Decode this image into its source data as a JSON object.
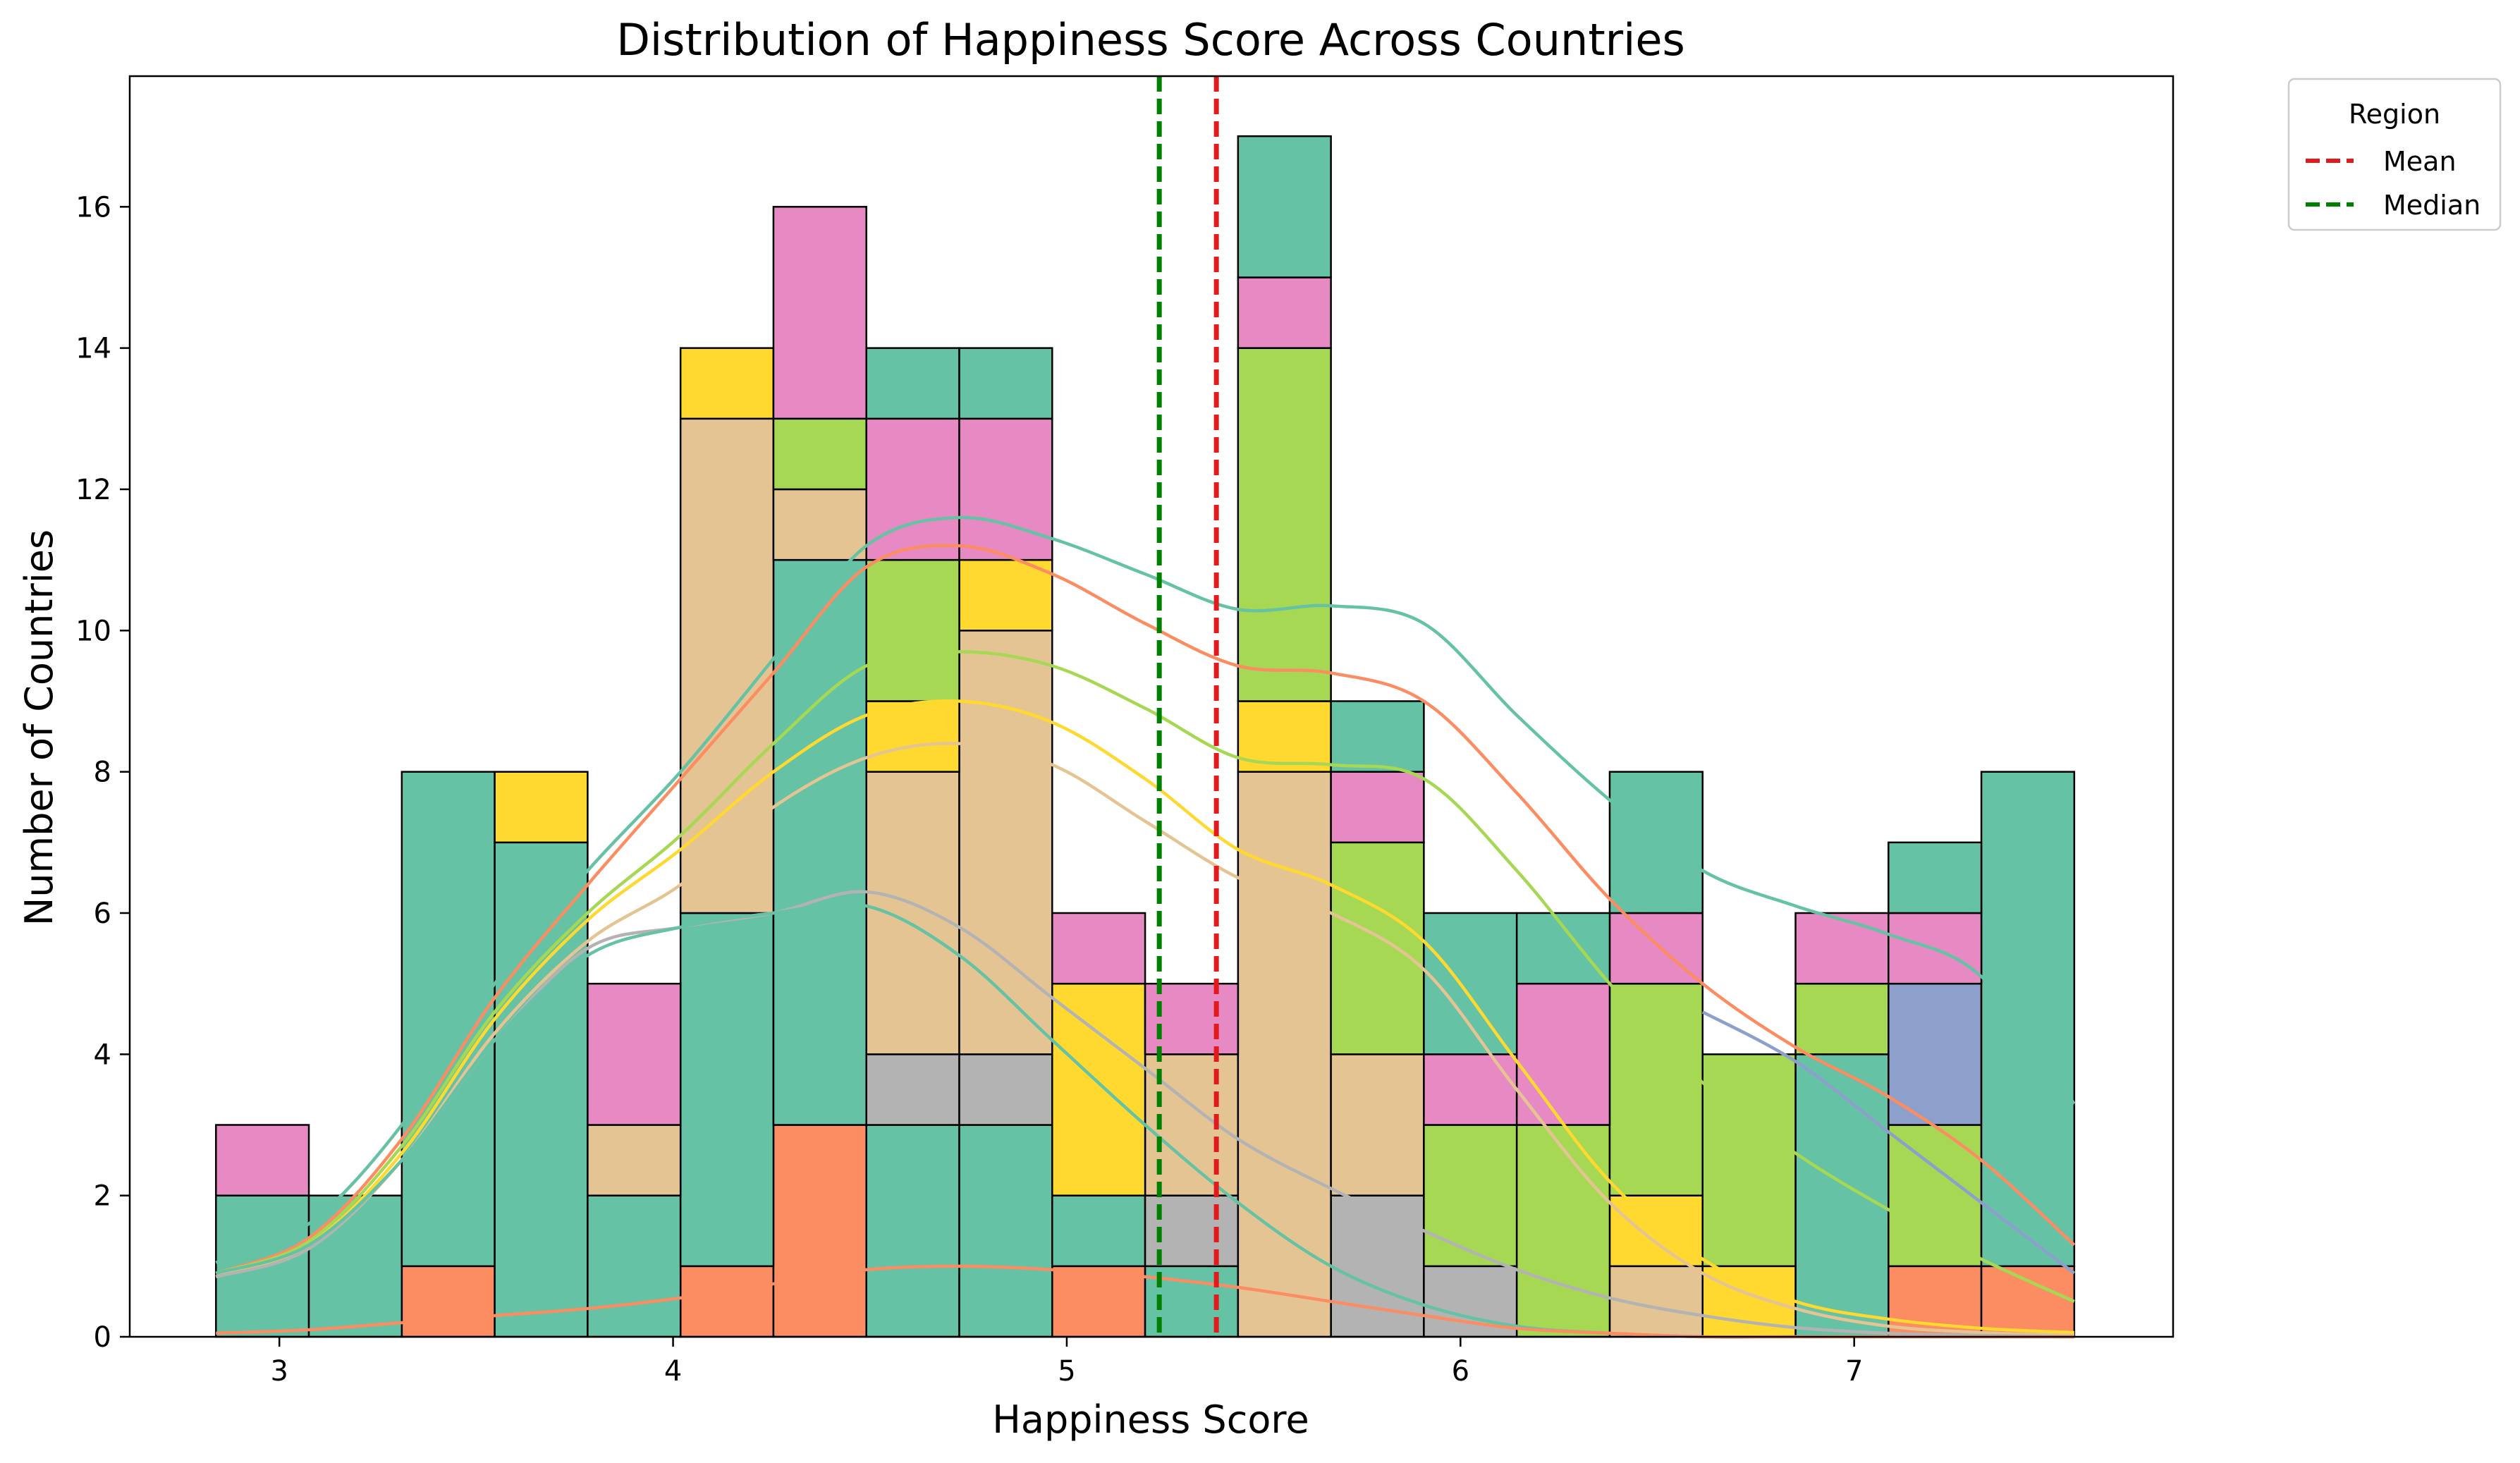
{
  "chart_data": {
    "type": "histogram",
    "stacked": true,
    "title": "Distribution of Happiness Score Across Countries",
    "xlabel": "Happiness Score",
    "ylabel": "Number of Countries",
    "xlim": [
      2.62,
      7.81
    ],
    "ylim": [
      0,
      17.85
    ],
    "x_ticks": [
      3,
      4,
      5,
      6,
      7
    ],
    "y_ticks": [
      0,
      2,
      4,
      6,
      8,
      10,
      12,
      14,
      16
    ],
    "grid": false,
    "bin_edges": [
      2.839,
      3.075,
      3.311,
      3.547,
      3.783,
      4.019,
      4.255,
      4.491,
      4.727,
      4.963,
      5.199,
      5.435,
      5.671,
      5.907,
      6.143,
      6.379,
      6.615,
      6.851,
      7.087,
      7.323,
      7.559
    ],
    "series": [
      {
        "color": "#fc8d62",
        "values": [
          0,
          0,
          1,
          0,
          0,
          1,
          3,
          0,
          0,
          1,
          0,
          0,
          0,
          0,
          0,
          0,
          0,
          0,
          1,
          1
        ]
      },
      {
        "color": "#a6d854",
        "values": [
          0,
          0,
          0,
          0,
          0,
          0,
          0,
          0,
          0,
          0,
          0,
          0,
          0,
          0,
          0,
          0,
          0,
          0,
          2,
          0
        ]
      },
      {
        "color": "#8da0cb",
        "values": [
          0,
          0,
          0,
          0,
          0,
          0,
          0,
          0,
          0,
          0,
          0,
          0,
          0,
          0,
          0,
          0,
          0,
          0,
          2,
          0
        ]
      },
      {
        "color": "#66c2a5",
        "values": [
          2,
          2,
          7,
          7,
          2,
          5,
          8,
          3,
          3,
          1,
          1,
          0,
          0,
          0,
          0,
          0,
          0,
          4,
          0,
          7
        ]
      },
      {
        "color": "#b3b3b3",
        "values": [
          0,
          0,
          0,
          0,
          0,
          0,
          0,
          1,
          1,
          0,
          1,
          0,
          2,
          1,
          0,
          0,
          0,
          0,
          0,
          0
        ]
      },
      {
        "color": "#e5c494",
        "values": [
          0,
          0,
          0,
          0,
          1,
          7,
          1,
          4,
          6,
          0,
          2,
          8,
          2,
          0,
          0,
          1,
          0,
          0,
          0,
          0
        ]
      },
      {
        "color": "#ffd92f",
        "values": [
          0,
          0,
          0,
          1,
          0,
          1,
          0,
          1,
          1,
          3,
          0,
          1,
          0,
          0,
          0,
          1,
          1,
          0,
          0,
          0
        ]
      },
      {
        "color": "#a6d854",
        "values": [
          0,
          0,
          0,
          0,
          0,
          0,
          1,
          2,
          0,
          0,
          0,
          5,
          3,
          2,
          3,
          3,
          3,
          1,
          0,
          0
        ]
      },
      {
        "color": "#e78ac3",
        "values": [
          1,
          0,
          0,
          0,
          2,
          0,
          3,
          2,
          2,
          1,
          1,
          1,
          1,
          1,
          2,
          1,
          0,
          1,
          1,
          0
        ]
      },
      {
        "color": "#66c2a5",
        "values": [
          0,
          0,
          0,
          0,
          0,
          0,
          0,
          1,
          1,
          0,
          0,
          2,
          1,
          2,
          1,
          2,
          0,
          0,
          1,
          0
        ]
      }
    ],
    "kde_curves": [
      {
        "color": "#66c2a5",
        "x": [
          2.839,
          3.075,
          3.311,
          3.547,
          3.783,
          4.019,
          4.255,
          4.491,
          4.727,
          4.963,
          5.199,
          5.435,
          5.671,
          5.907,
          6.143,
          6.379,
          6.615,
          6.851,
          7.087,
          7.323,
          7.559
        ],
        "y": [
          1.05,
          1.6,
          3.0,
          5.0,
          6.6,
          8.0,
          9.6,
          11.2,
          11.6,
          11.3,
          10.8,
          10.3,
          10.35,
          10.1,
          8.8,
          7.6,
          6.6,
          6.1,
          5.7,
          5.1,
          3.3
        ]
      },
      {
        "color": "#fc8d62",
        "x": [
          2.839,
          3.075,
          3.311,
          3.547,
          3.783,
          4.019,
          4.255,
          4.491,
          4.727,
          4.963,
          5.199,
          5.435,
          5.671,
          5.907,
          6.143,
          6.379,
          6.615,
          6.851,
          7.087,
          7.323,
          7.559
        ],
        "y": [
          0.9,
          1.4,
          2.8,
          4.8,
          6.4,
          7.9,
          9.4,
          10.9,
          11.2,
          10.8,
          10.1,
          9.5,
          9.4,
          9.0,
          7.7,
          6.2,
          5.0,
          4.1,
          3.4,
          2.5,
          1.3
        ]
      },
      {
        "color": "#a6d854",
        "x": [
          2.839,
          3.075,
          3.311,
          3.547,
          3.783,
          4.019,
          4.255,
          4.491,
          4.727,
          4.963,
          5.199,
          5.435,
          5.671,
          5.907,
          6.143,
          6.379,
          6.615,
          6.851,
          7.087,
          7.323,
          7.559
        ],
        "y": [
          0.9,
          1.35,
          2.7,
          4.6,
          6.0,
          7.1,
          8.4,
          9.5,
          9.7,
          9.5,
          8.9,
          8.2,
          8.1,
          7.9,
          6.6,
          5.0,
          3.6,
          2.6,
          1.8,
          1.1,
          0.5
        ]
      },
      {
        "color": "#ffd92f",
        "x": [
          2.839,
          3.075,
          3.311,
          3.547,
          3.783,
          4.019,
          4.255,
          4.491,
          4.727,
          4.963,
          5.199,
          5.435,
          5.671,
          5.907,
          6.143,
          6.379,
          6.615,
          6.851,
          7.087,
          7.323,
          7.559
        ],
        "y": [
          0.85,
          1.3,
          2.6,
          4.5,
          5.9,
          6.9,
          8.0,
          8.8,
          9.0,
          8.7,
          7.9,
          6.9,
          6.4,
          5.6,
          3.9,
          2.2,
          1.1,
          0.5,
          0.25,
          0.12,
          0.06
        ]
      },
      {
        "color": "#e5c494",
        "x": [
          2.839,
          3.075,
          3.311,
          3.547,
          3.783,
          4.019,
          4.255,
          4.491,
          4.727,
          4.963,
          5.199,
          5.435,
          5.671,
          5.907,
          6.143,
          6.379,
          6.615,
          6.851,
          7.087,
          7.323,
          7.559
        ],
        "y": [
          0.85,
          1.25,
          2.5,
          4.3,
          5.6,
          6.4,
          7.5,
          8.2,
          8.4,
          8.1,
          7.3,
          6.5,
          6.0,
          5.2,
          3.5,
          1.9,
          0.9,
          0.4,
          0.15,
          0.06,
          0.02
        ]
      },
      {
        "color": "#b3b3b3",
        "x": [
          2.839,
          3.075,
          3.311,
          3.547,
          3.783,
          4.019,
          4.255,
          4.491,
          4.727,
          4.963,
          5.199,
          5.435,
          5.671,
          5.907,
          6.143,
          6.379,
          6.615,
          6.851,
          7.087,
          7.323,
          7.559
        ],
        "y": [
          0.85,
          1.25,
          2.5,
          4.2,
          5.5,
          5.8,
          6.0,
          6.3,
          5.8,
          4.8,
          3.8,
          2.8,
          2.1,
          1.5,
          0.95,
          0.55,
          0.3,
          0.13,
          0.05,
          0.02,
          0.0
        ]
      },
      {
        "color": "#66c2a5",
        "x": [
          2.839,
          3.075,
          3.311,
          3.547,
          3.783,
          4.019,
          4.255,
          4.491,
          4.727,
          4.963,
          5.199,
          5.435,
          5.671,
          5.907,
          6.143,
          6.379,
          6.615,
          6.851,
          7.087,
          7.323,
          7.559
        ],
        "y": [
          0.9,
          1.3,
          2.5,
          4.2,
          5.4,
          5.8,
          6.0,
          6.1,
          5.4,
          4.2,
          3.0,
          1.9,
          1.0,
          0.45,
          0.15,
          0.05,
          0.0,
          0.0,
          0.0,
          0.0,
          0.0
        ]
      },
      {
        "color": "#8da0cb",
        "x": [
          6.615,
          6.851,
          7.087,
          7.323,
          7.559
        ],
        "y": [
          4.6,
          3.9,
          2.9,
          1.9,
          0.9
        ]
      },
      {
        "color": "#fc8d62",
        "x": [
          2.839,
          3.075,
          3.311,
          3.547,
          3.783,
          4.019,
          4.255,
          4.491,
          4.727,
          4.963,
          5.199,
          5.435,
          5.671,
          5.907,
          6.143,
          6.379,
          6.615,
          6.851,
          7.087,
          7.323,
          7.559
        ],
        "y": [
          0.05,
          0.1,
          0.2,
          0.3,
          0.4,
          0.55,
          0.75,
          0.95,
          1.0,
          0.95,
          0.85,
          0.7,
          0.5,
          0.3,
          0.12,
          0.05,
          0.0,
          0.0,
          0.0,
          0.0,
          0.0
        ]
      }
    ],
    "vlines": [
      {
        "label": "Mean",
        "x": 5.38,
        "color": "#e31a1c"
      },
      {
        "label": "Median",
        "x": 5.235,
        "color": "#008000"
      }
    ],
    "legend": {
      "title": "Region",
      "placement": "upper-left-outside",
      "entries": [
        {
          "label": "Mean",
          "color": "#e31a1c"
        },
        {
          "label": "Median",
          "color": "#008000"
        }
      ]
    }
  }
}
